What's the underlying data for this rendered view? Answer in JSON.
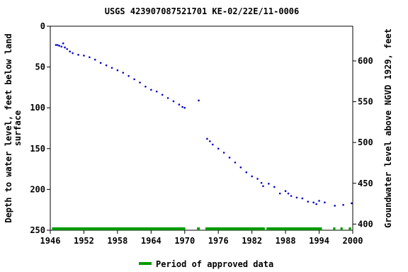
{
  "chart_data": {
    "type": "scatter",
    "title": "USGS 423907087521701 KE-02/22E/11-0006",
    "y_label": [
      "Depth to water level, feet below land",
      "surface"
    ],
    "y2_label": "Groundwater level above NGVD 1929, feet",
    "x": [
      1947.0,
      1947.3,
      1947.6,
      1948.0,
      1948.3,
      1948.6,
      1949.0,
      1949.5,
      1950,
      1951,
      1952,
      1953,
      1954,
      1955,
      1956,
      1957,
      1958,
      1959,
      1960,
      1961,
      1962,
      1963,
      1964,
      1965,
      1966,
      1967,
      1968,
      1969,
      1969.6,
      1970,
      1972.5,
      1974,
      1974.5,
      1975,
      1976,
      1977,
      1978,
      1979,
      1980,
      1981,
      1982,
      1983,
      1983.7,
      1984,
      1985,
      1986,
      1987,
      1988,
      1988.5,
      1989,
      1990,
      1991,
      1992,
      1993,
      1993.5,
      1994,
      1995,
      1996.8,
      1998.3,
      1999.8
    ],
    "values": [
      23,
      23,
      24,
      25,
      21,
      26,
      28,
      31,
      33,
      35,
      36,
      38,
      41,
      45,
      48,
      51,
      54,
      57,
      61,
      65,
      69,
      74,
      78,
      80,
      84,
      88,
      92,
      96,
      99,
      100,
      91,
      138,
      141,
      145,
      150,
      155,
      161,
      167,
      173,
      179,
      184,
      187,
      192,
      196,
      193,
      197,
      205,
      202,
      205,
      208,
      210,
      211,
      215,
      216,
      218,
      214,
      216,
      220,
      219,
      217
    ],
    "color": "#0000cc",
    "xlim": [
      1946,
      2000
    ],
    "xticks": [
      1946,
      1952,
      1958,
      1964,
      1970,
      1976,
      1982,
      1988,
      1994,
      2000
    ],
    "ylim": [
      250,
      0
    ],
    "yticks": [
      0,
      50,
      100,
      150,
      200,
      250
    ],
    "y2lim": [
      392.5,
      642.5
    ],
    "y2ticks": [
      400,
      450,
      500,
      550,
      600
    ],
    "approved_periods": [
      [
        1946.3,
        1970.1
      ],
      [
        1972.2,
        1972.7
      ],
      [
        1973.7,
        1984.3
      ],
      [
        1984.6,
        1994.5
      ],
      [
        1996.5,
        1996.9
      ],
      [
        1997.8,
        1998.2
      ],
      [
        1999.3,
        1999.7
      ]
    ],
    "approved_color": "#009900",
    "legend": "Period of approved data"
  }
}
